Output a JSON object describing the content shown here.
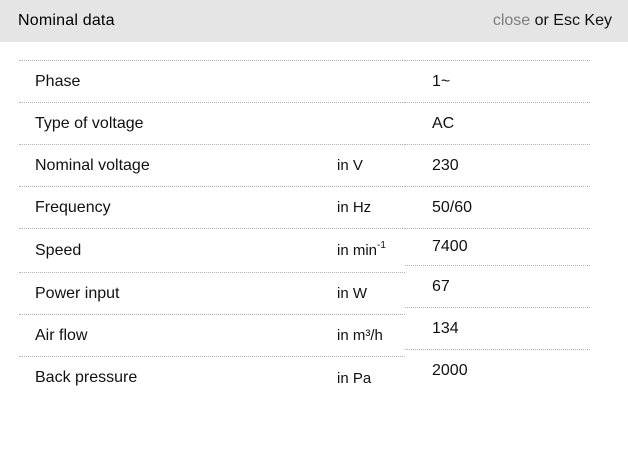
{
  "header": {
    "title": "Nominal data",
    "close_label": "close",
    "close_suffix": " or Esc Key"
  },
  "colors": {
    "header_bg": "#e5e5e5",
    "divider": "#b0b0b0",
    "close_link": "#7d7d7d",
    "text": "#111111"
  },
  "table": {
    "rows": [
      {
        "label": "Phase",
        "unit": "",
        "unit_sup": "",
        "value": "1~"
      },
      {
        "label": "Type of voltage",
        "unit": "",
        "unit_sup": "",
        "value": "AC"
      },
      {
        "label": "Nominal voltage",
        "unit": "in V",
        "unit_sup": "",
        "value": "230"
      },
      {
        "label": "Frequency",
        "unit": "in Hz",
        "unit_sup": "",
        "value": "50/60"
      },
      {
        "label": "Speed",
        "unit": "in min",
        "unit_sup": "-1",
        "value": "7400"
      },
      {
        "label": "Power input",
        "unit": "in W",
        "unit_sup": "",
        "value": "67"
      },
      {
        "label": "Air flow",
        "unit": "in m³/h",
        "unit_sup": "",
        "value": "134"
      },
      {
        "label": "Back pressure",
        "unit": "in Pa",
        "unit_sup": "",
        "value": "2000"
      }
    ]
  }
}
